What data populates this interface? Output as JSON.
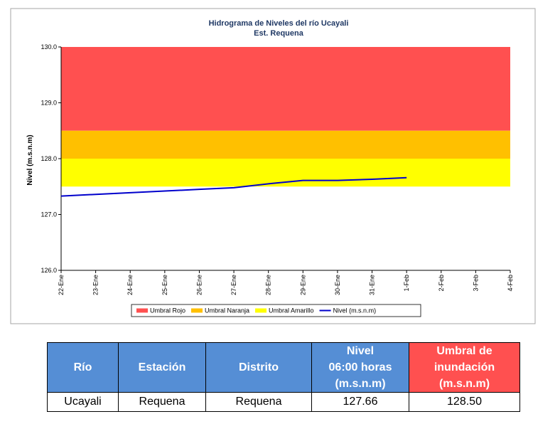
{
  "chart_data": {
    "type": "line",
    "title": "Hidrograma de Niveles del río Ucayali",
    "subtitle": "Est. Requena",
    "ylabel": "Nivel (m.s.n.m)",
    "categories": [
      "22-Ene",
      "23-Ene",
      "24-Ene",
      "25-Ene",
      "26-Ene",
      "27-Ene",
      "28-Ene",
      "29-Ene",
      "30-Ene",
      "31-Ene",
      "1-Feb",
      "2-Feb",
      "3-Feb",
      "4-Feb"
    ],
    "ylim": [
      126,
      130
    ],
    "yticks": [
      {
        "value": 126,
        "label": "126.0"
      },
      {
        "value": 127,
        "label": "127.0"
      },
      {
        "value": 128,
        "label": "128.0"
      },
      {
        "value": 129,
        "label": "129.0"
      },
      {
        "value": 130,
        "label": "130.0"
      }
    ],
    "bands": [
      {
        "name": "Umbral Rojo",
        "color": "#ff5050",
        "range": [
          128.5,
          130
        ]
      },
      {
        "name": "Umbral Naranja",
        "color": "#ffc000",
        "range": [
          128,
          128.5
        ]
      },
      {
        "name": "Umbral Amarillo",
        "color": "#ffff00",
        "range": [
          127.5,
          128
        ]
      }
    ],
    "series": [
      {
        "name": "Nivel (m.s.n.m)",
        "color": "#0000cc",
        "values": [
          127.33,
          127.36,
          127.39,
          127.42,
          127.45,
          127.48,
          127.55,
          127.61,
          127.61,
          127.63,
          127.66,
          null,
          null,
          null
        ]
      }
    ]
  },
  "table": {
    "header": [
      [
        "Río"
      ],
      [
        "Estación"
      ],
      [
        "Distrito"
      ],
      [
        "Nivel",
        "06:00 horas",
        "(m.s.n.m)"
      ],
      [
        "Umbral de",
        "inundación",
        "(m.s.n.m)"
      ]
    ],
    "rows": [
      [
        "Ucayali",
        "Requena",
        "Requena",
        "127.66",
        "128.50"
      ]
    ]
  }
}
